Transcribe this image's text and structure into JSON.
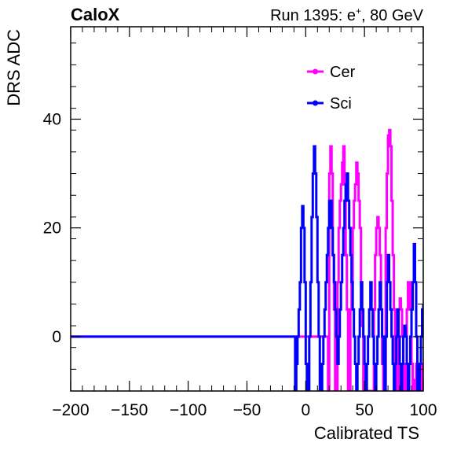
{
  "header": {
    "left_title": "CaloX",
    "right_title_prefix": "Run 1395: e",
    "right_title_sup": "+",
    "right_title_suffix": ", 80 GeV"
  },
  "chart_data": {
    "type": "line",
    "style": "step",
    "xlabel": "Calibrated TS",
    "ylabel": "DRS ADC",
    "xlim": [
      -200,
      100
    ],
    "ylim": [
      -10,
      57
    ],
    "x_ticks": [
      -200,
      -150,
      -100,
      -50,
      0,
      50,
      100
    ],
    "x_tick_labels": [
      "−200",
      "−150",
      "−100",
      "−50",
      "0",
      "50",
      "100"
    ],
    "y_ticks": [
      0,
      20,
      40
    ],
    "y_tick_labels": [
      "0",
      "20",
      "40"
    ],
    "grid": false,
    "legend_position": "top-right",
    "series": [
      {
        "name": "Cer",
        "color": "#ff00ff",
        "points": [
          [
            -200,
            0
          ],
          [
            0,
            0
          ],
          [
            18,
            0
          ],
          [
            19,
            -10
          ],
          [
            20,
            30
          ],
          [
            21,
            35
          ],
          [
            22,
            30
          ],
          [
            23,
            15
          ],
          [
            24,
            5
          ],
          [
            25,
            -10
          ],
          [
            26,
            -10
          ],
          [
            27,
            10
          ],
          [
            28,
            20
          ],
          [
            29,
            25
          ],
          [
            30,
            28
          ],
          [
            31,
            32
          ],
          [
            32,
            35
          ],
          [
            33,
            28
          ],
          [
            34,
            15
          ],
          [
            35,
            5
          ],
          [
            36,
            -10
          ],
          [
            37,
            -10
          ],
          [
            38,
            5
          ],
          [
            39,
            10
          ],
          [
            40,
            20
          ],
          [
            41,
            25
          ],
          [
            42,
            28
          ],
          [
            43,
            32
          ],
          [
            44,
            30
          ],
          [
            45,
            25
          ],
          [
            46,
            20
          ],
          [
            47,
            10
          ],
          [
            48,
            2
          ],
          [
            49,
            -10
          ],
          [
            50,
            -10
          ],
          [
            51,
            -10
          ],
          [
            52,
            -10
          ],
          [
            53,
            -10
          ],
          [
            54,
            -10
          ],
          [
            55,
            -10
          ],
          [
            56,
            -10
          ],
          [
            57,
            -10
          ],
          [
            58,
            5
          ],
          [
            59,
            15
          ],
          [
            60,
            20
          ],
          [
            61,
            22
          ],
          [
            62,
            20
          ],
          [
            63,
            15
          ],
          [
            64,
            5
          ],
          [
            65,
            -5
          ],
          [
            66,
            -10
          ],
          [
            67,
            -10
          ],
          [
            68,
            20
          ],
          [
            69,
            30
          ],
          [
            70,
            37
          ],
          [
            71,
            38
          ],
          [
            72,
            35
          ],
          [
            73,
            25
          ],
          [
            74,
            15
          ],
          [
            75,
            5
          ],
          [
            76,
            -5
          ],
          [
            77,
            -10
          ],
          [
            78,
            -10
          ],
          [
            79,
            5
          ],
          [
            80,
            7
          ],
          [
            81,
            5
          ],
          [
            82,
            0
          ],
          [
            83,
            -5
          ],
          [
            84,
            -10
          ],
          [
            85,
            -10
          ],
          [
            86,
            5
          ],
          [
            87,
            10
          ],
          [
            88,
            10
          ],
          [
            89,
            5
          ],
          [
            90,
            -5
          ],
          [
            91,
            -10
          ],
          [
            92,
            -10
          ],
          [
            93,
            -8
          ],
          [
            94,
            -5
          ],
          [
            95,
            -10
          ],
          [
            96,
            -10
          ],
          [
            97,
            -10
          ],
          [
            98,
            -5
          ],
          [
            99,
            -10
          ],
          [
            100,
            -10
          ]
        ]
      },
      {
        "name": "Sci",
        "color": "#0000ff",
        "points": [
          [
            -200,
            0
          ],
          [
            -10,
            0
          ],
          [
            -9,
            -10
          ],
          [
            -8,
            -5
          ],
          [
            -7,
            0
          ],
          [
            -6,
            5
          ],
          [
            -5,
            10
          ],
          [
            -4,
            20
          ],
          [
            -3,
            24
          ],
          [
            -2,
            20
          ],
          [
            -1,
            10
          ],
          [
            0,
            -5
          ],
          [
            1,
            -10
          ],
          [
            2,
            -10
          ],
          [
            3,
            0
          ],
          [
            4,
            10
          ],
          [
            5,
            22
          ],
          [
            6,
            30
          ],
          [
            7,
            35
          ],
          [
            8,
            30
          ],
          [
            9,
            22
          ],
          [
            10,
            10
          ],
          [
            11,
            0
          ],
          [
            12,
            -10
          ],
          [
            13,
            -10
          ],
          [
            14,
            -5
          ],
          [
            15,
            0
          ],
          [
            16,
            5
          ],
          [
            17,
            10
          ],
          [
            18,
            15
          ],
          [
            19,
            20
          ],
          [
            20,
            25
          ],
          [
            21,
            25
          ],
          [
            22,
            20
          ],
          [
            23,
            15
          ],
          [
            24,
            10
          ],
          [
            25,
            5
          ],
          [
            26,
            0
          ],
          [
            27,
            -5
          ],
          [
            28,
            0
          ],
          [
            29,
            5
          ],
          [
            30,
            10
          ],
          [
            31,
            15
          ],
          [
            32,
            20
          ],
          [
            33,
            25
          ],
          [
            34,
            28
          ],
          [
            35,
            30
          ],
          [
            36,
            25
          ],
          [
            37,
            20
          ],
          [
            38,
            15
          ],
          [
            39,
            10
          ],
          [
            40,
            5
          ],
          [
            41,
            0
          ],
          [
            42,
            -5
          ],
          [
            43,
            -10
          ],
          [
            44,
            -5
          ],
          [
            45,
            0
          ],
          [
            46,
            5
          ],
          [
            47,
            10
          ],
          [
            48,
            5
          ],
          [
            49,
            0
          ],
          [
            50,
            -5
          ],
          [
            51,
            -10
          ],
          [
            52,
            -5
          ],
          [
            53,
            0
          ],
          [
            54,
            5
          ],
          [
            55,
            10
          ],
          [
            56,
            5
          ],
          [
            57,
            0
          ],
          [
            58,
            -5
          ],
          [
            59,
            -10
          ],
          [
            60,
            -5
          ],
          [
            61,
            0
          ],
          [
            62,
            5
          ],
          [
            63,
            10
          ],
          [
            64,
            5
          ],
          [
            65,
            0
          ],
          [
            66,
            -5
          ],
          [
            67,
            -10
          ],
          [
            68,
            0
          ],
          [
            69,
            10
          ],
          [
            70,
            15
          ],
          [
            71,
            10
          ],
          [
            72,
            5
          ],
          [
            73,
            0
          ],
          [
            74,
            -5
          ],
          [
            75,
            -10
          ],
          [
            76,
            -5
          ],
          [
            77,
            0
          ],
          [
            78,
            5
          ],
          [
            79,
            0
          ],
          [
            80,
            -5
          ],
          [
            81,
            -10
          ],
          [
            82,
            -5
          ],
          [
            83,
            0
          ],
          [
            84,
            2
          ],
          [
            85,
            0
          ],
          [
            86,
            -5
          ],
          [
            87,
            -10
          ],
          [
            88,
            -5
          ],
          [
            89,
            0
          ],
          [
            90,
            5
          ],
          [
            91,
            10
          ],
          [
            92,
            17
          ],
          [
            93,
            10
          ],
          [
            94,
            0
          ],
          [
            95,
            -10
          ],
          [
            96,
            -10
          ],
          [
            97,
            -5
          ],
          [
            98,
            0
          ],
          [
            99,
            5
          ],
          [
            100,
            6
          ]
        ]
      }
    ]
  }
}
